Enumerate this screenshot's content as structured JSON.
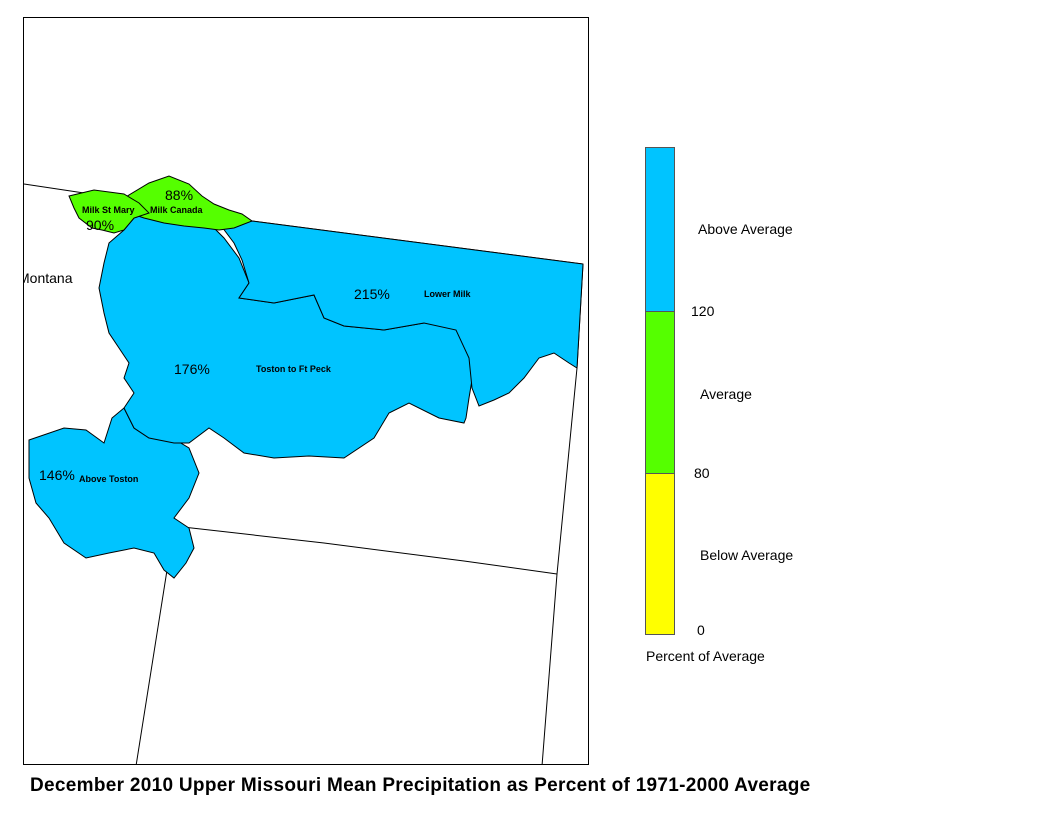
{
  "title": "December 2010 Upper Missouri Mean Precipitation as Percent of 1971-2000 Average",
  "colors": {
    "above": "#00c4ff",
    "average": "#55ff00",
    "below": "#ffff00"
  },
  "map": {
    "state_label": "Montana",
    "basins": [
      {
        "name": "Milk St Mary",
        "percent": "90%",
        "category": "average"
      },
      {
        "name": "Milk Canada",
        "percent": "88%",
        "category": "average"
      },
      {
        "name": "Lower Milk",
        "percent": "215%",
        "category": "above"
      },
      {
        "name": "Toston to Ft Peck",
        "percent": "176%",
        "category": "above"
      },
      {
        "name": "Above Toston",
        "percent": "146%",
        "category": "above"
      }
    ]
  },
  "legend": {
    "caption": "Percent of Average",
    "categories": [
      {
        "label": "Above Average",
        "color": "#00c4ff"
      },
      {
        "label": "Average",
        "color": "#55ff00"
      },
      {
        "label": "Below Average",
        "color": "#ffff00"
      }
    ],
    "ticks": [
      "120",
      "80",
      "0"
    ]
  }
}
